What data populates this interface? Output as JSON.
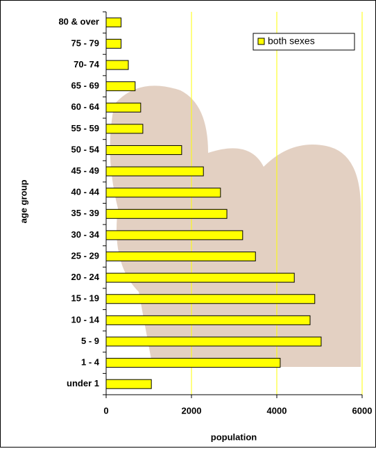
{
  "chart_data": {
    "type": "bar",
    "orientation": "horizontal",
    "categories": [
      "80 & over",
      "75 - 79",
      "70- 74",
      "65 - 69",
      "60 - 64",
      "55 - 59",
      "50 - 54",
      "45 - 49",
      "40 - 44",
      "35 - 39",
      "30 - 34",
      "25 - 29",
      "20 - 24",
      "15 - 19",
      "10 - 14",
      "5 - 9",
      "1 - 4",
      "under 1"
    ],
    "series": [
      {
        "name": "both sexes",
        "color": "#ffff00",
        "values": [
          350,
          350,
          520,
          680,
          810,
          860,
          1770,
          2280,
          2680,
          2830,
          3200,
          3500,
          4410,
          4890,
          4780,
          5040,
          4080,
          1060
        ]
      }
    ],
    "xlim": [
      0,
      6000
    ],
    "xticks": [
      0,
      2000,
      4000,
      6000
    ],
    "x_label": "population",
    "y_label": "age group",
    "grid": true,
    "grid_color": "#ffff00",
    "legend_position": "upper right"
  }
}
